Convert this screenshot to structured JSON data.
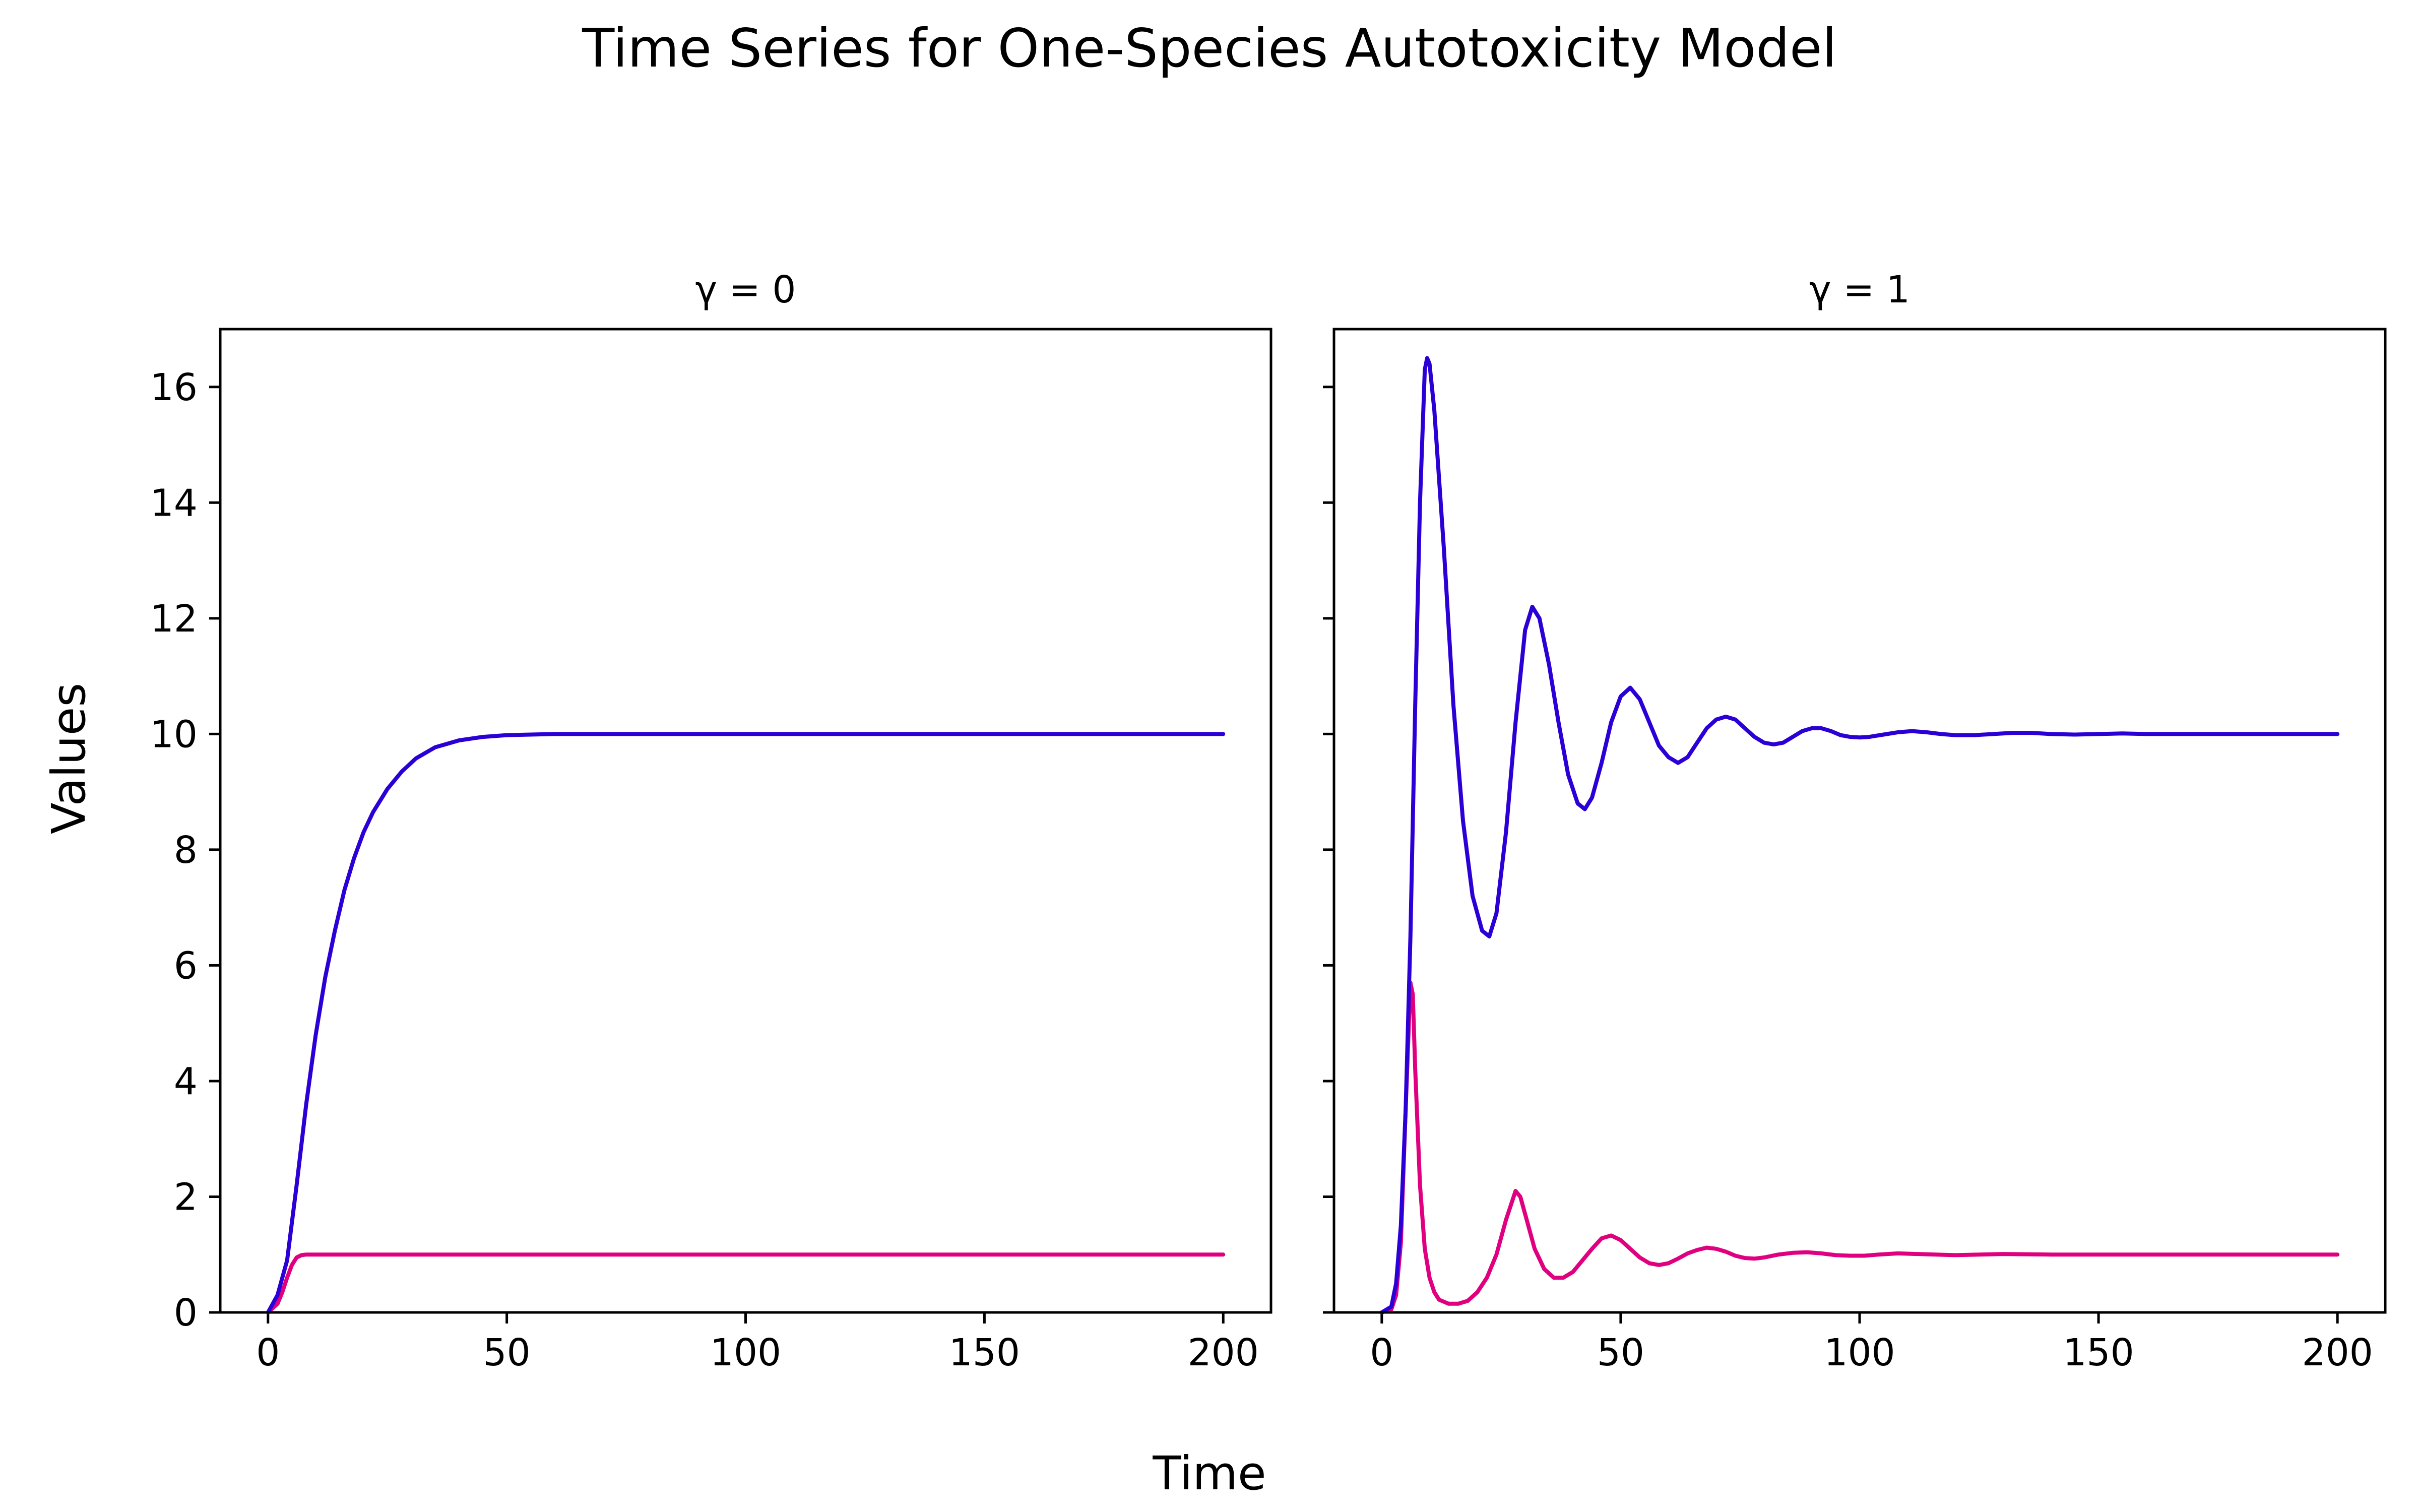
{
  "figure": {
    "title": "Time Series for One-Species Autotoxicity Model",
    "xlabel": "Time",
    "ylabel": "Values"
  },
  "chart_data": [
    {
      "type": "line",
      "title": "γ = 0",
      "xlim": [
        -10,
        210
      ],
      "ylim": [
        0,
        17
      ],
      "xticks": [
        0,
        50,
        100,
        150,
        200
      ],
      "yticks": [
        0,
        2,
        4,
        6,
        8,
        10,
        12,
        14,
        16
      ],
      "series": [
        {
          "name": "blue",
          "color": "#2a00d6",
          "points": [
            [
              0,
              0
            ],
            [
              2,
              0.3
            ],
            [
              4,
              0.9
            ],
            [
              6,
              2.2
            ],
            [
              8,
              3.6
            ],
            [
              10,
              4.8
            ],
            [
              12,
              5.8
            ],
            [
              14,
              6.6
            ],
            [
              16,
              7.3
            ],
            [
              18,
              7.85
            ],
            [
              20,
              8.3
            ],
            [
              22,
              8.65
            ],
            [
              25,
              9.05
            ],
            [
              28,
              9.35
            ],
            [
              31,
              9.58
            ],
            [
              35,
              9.77
            ],
            [
              40,
              9.89
            ],
            [
              45,
              9.95
            ],
            [
              50,
              9.98
            ],
            [
              60,
              10.0
            ],
            [
              80,
              10.0
            ],
            [
              120,
              10.0
            ],
            [
              160,
              10.0
            ],
            [
              200,
              10.0
            ]
          ]
        },
        {
          "name": "magenta",
          "color": "#e0007f",
          "points": [
            [
              0,
              0
            ],
            [
              2,
              0.15
            ],
            [
              3,
              0.35
            ],
            [
              4,
              0.6
            ],
            [
              5,
              0.82
            ],
            [
              6,
              0.95
            ],
            [
              7,
              0.99
            ],
            [
              8,
              1.0
            ],
            [
              20,
              1.0
            ],
            [
              100,
              1.0
            ],
            [
              200,
              1.0
            ]
          ]
        }
      ]
    },
    {
      "type": "line",
      "title": "γ = 1",
      "xlim": [
        -10,
        210
      ],
      "ylim": [
        0,
        17
      ],
      "xticks": [
        0,
        50,
        100,
        150,
        200
      ],
      "yticks": [
        0,
        2,
        4,
        6,
        8,
        10,
        12,
        14,
        16
      ],
      "series": [
        {
          "name": "blue",
          "color": "#2a00d6",
          "points": [
            [
              0,
              0
            ],
            [
              2,
              0.1
            ],
            [
              3,
              0.5
            ],
            [
              4,
              1.5
            ],
            [
              5,
              3.5
            ],
            [
              6,
              6.5
            ],
            [
              7,
              10.5
            ],
            [
              8,
              14.0
            ],
            [
              9,
              16.3
            ],
            [
              9.5,
              16.5
            ],
            [
              10,
              16.4
            ],
            [
              11,
              15.6
            ],
            [
              13,
              13.2
            ],
            [
              15,
              10.5
            ],
            [
              17,
              8.5
            ],
            [
              19,
              7.2
            ],
            [
              21,
              6.6
            ],
            [
              22.5,
              6.5
            ],
            [
              24,
              6.9
            ],
            [
              26,
              8.3
            ],
            [
              28,
              10.2
            ],
            [
              30,
              11.8
            ],
            [
              31.5,
              12.2
            ],
            [
              33,
              12.0
            ],
            [
              35,
              11.2
            ],
            [
              37,
              10.2
            ],
            [
              39,
              9.3
            ],
            [
              41,
              8.8
            ],
            [
              42.5,
              8.7
            ],
            [
              44,
              8.9
            ],
            [
              46,
              9.5
            ],
            [
              48,
              10.2
            ],
            [
              50,
              10.65
            ],
            [
              52,
              10.8
            ],
            [
              54,
              10.6
            ],
            [
              56,
              10.2
            ],
            [
              58,
              9.8
            ],
            [
              60,
              9.6
            ],
            [
              62,
              9.5
            ],
            [
              64,
              9.6
            ],
            [
              66,
              9.85
            ],
            [
              68,
              10.1
            ],
            [
              70,
              10.25
            ],
            [
              72,
              10.3
            ],
            [
              74,
              10.25
            ],
            [
              76,
              10.1
            ],
            [
              78,
              9.95
            ],
            [
              80,
              9.85
            ],
            [
              82,
              9.82
            ],
            [
              84,
              9.85
            ],
            [
              86,
              9.95
            ],
            [
              88,
              10.05
            ],
            [
              90,
              10.1
            ],
            [
              92,
              10.1
            ],
            [
              94,
              10.05
            ],
            [
              96,
              9.98
            ],
            [
              98,
              9.95
            ],
            [
              100,
              9.94
            ],
            [
              102,
              9.95
            ],
            [
              105,
              9.99
            ],
            [
              108,
              10.03
            ],
            [
              111,
              10.05
            ],
            [
              114,
              10.03
            ],
            [
              117,
              10.0
            ],
            [
              120,
              9.98
            ],
            [
              124,
              9.98
            ],
            [
              128,
              10.0
            ],
            [
              132,
              10.02
            ],
            [
              136,
              10.02
            ],
            [
              140,
              10.0
            ],
            [
              145,
              9.99
            ],
            [
              150,
              10.0
            ],
            [
              155,
              10.01
            ],
            [
              160,
              10.0
            ],
            [
              165,
              10.0
            ],
            [
              170,
              10.0
            ],
            [
              180,
              10.0
            ],
            [
              190,
              10.0
            ],
            [
              200,
              10.0
            ]
          ]
        },
        {
          "name": "magenta",
          "color": "#e0007f",
          "points": [
            [
              0,
              0
            ],
            [
              2,
              0.05
            ],
            [
              3,
              0.3
            ],
            [
              4,
              1.2
            ],
            [
              5,
              3.5
            ],
            [
              6,
              5.7
            ],
            [
              6.5,
              5.5
            ],
            [
              7,
              4.2
            ],
            [
              8,
              2.2
            ],
            [
              9,
              1.1
            ],
            [
              10,
              0.6
            ],
            [
              11,
              0.35
            ],
            [
              12,
              0.22
            ],
            [
              14,
              0.15
            ],
            [
              16,
              0.15
            ],
            [
              18,
              0.2
            ],
            [
              20,
              0.35
            ],
            [
              22,
              0.6
            ],
            [
              24,
              1.0
            ],
            [
              26,
              1.6
            ],
            [
              28,
              2.1
            ],
            [
              29,
              2.0
            ],
            [
              30,
              1.7
            ],
            [
              32,
              1.1
            ],
            [
              34,
              0.75
            ],
            [
              36,
              0.6
            ],
            [
              38,
              0.6
            ],
            [
              40,
              0.7
            ],
            [
              42,
              0.9
            ],
            [
              44,
              1.1
            ],
            [
              46,
              1.28
            ],
            [
              48,
              1.33
            ],
            [
              50,
              1.25
            ],
            [
              52,
              1.1
            ],
            [
              54,
              0.95
            ],
            [
              56,
              0.85
            ],
            [
              58,
              0.82
            ],
            [
              60,
              0.85
            ],
            [
              62,
              0.93
            ],
            [
              64,
              1.02
            ],
            [
              66,
              1.08
            ],
            [
              68,
              1.12
            ],
            [
              70,
              1.1
            ],
            [
              72,
              1.05
            ],
            [
              74,
              0.98
            ],
            [
              76,
              0.94
            ],
            [
              78,
              0.93
            ],
            [
              80,
              0.95
            ],
            [
              83,
              1.0
            ],
            [
              86,
              1.03
            ],
            [
              89,
              1.04
            ],
            [
              92,
              1.02
            ],
            [
              95,
              0.99
            ],
            [
              98,
              0.98
            ],
            [
              101,
              0.98
            ],
            [
              104,
              1.0
            ],
            [
              108,
              1.02
            ],
            [
              112,
              1.01
            ],
            [
              116,
              1.0
            ],
            [
              120,
              0.99
            ],
            [
              125,
              1.0
            ],
            [
              130,
              1.01
            ],
            [
              140,
              1.0
            ],
            [
              150,
              1.0
            ],
            [
              160,
              1.0
            ],
            [
              170,
              1.0
            ],
            [
              180,
              1.0
            ],
            [
              200,
              1.0
            ]
          ]
        }
      ]
    }
  ]
}
